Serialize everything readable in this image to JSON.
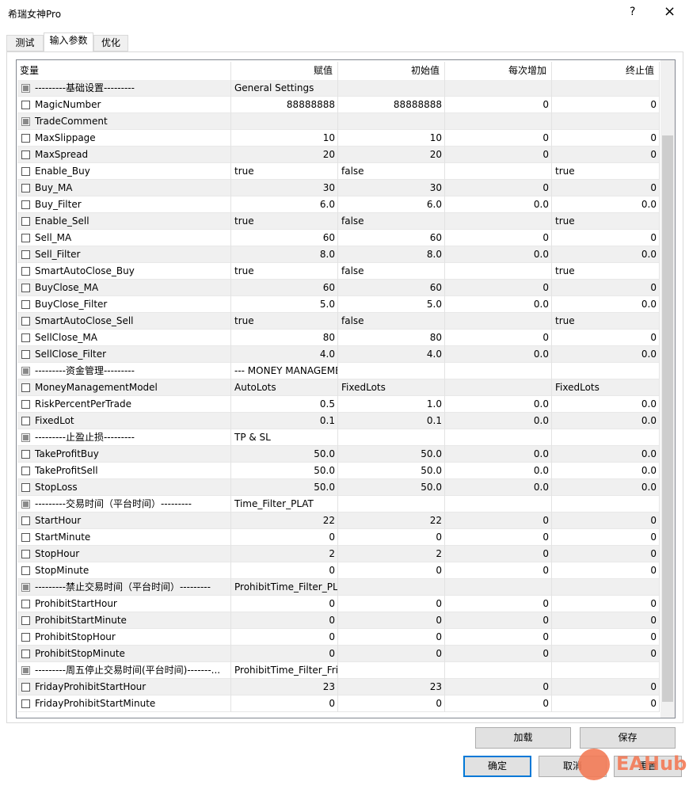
{
  "window": {
    "title": "希瑞女神Pro",
    "help": "?",
    "close": "×"
  },
  "tabs": [
    "测试",
    "输入参数",
    "优化"
  ],
  "table": {
    "header": [
      "变量",
      "赋值",
      "初始值",
      "每次增加",
      "终止值"
    ],
    "rows": [
      [
        "---------基础设置---------",
        "General Settings",
        null,
        null,
        null
      ],
      [
        "MagicNumber",
        "88888888",
        "88888888",
        "0",
        "0"
      ],
      [
        "TradeComment",
        null,
        null,
        null,
        null
      ],
      [
        "MaxSlippage",
        "10",
        "10",
        "0",
        "0"
      ],
      [
        "MaxSpread",
        "20",
        "20",
        "0",
        "0"
      ],
      [
        "Enable_Buy",
        "true",
        "false",
        null,
        "true"
      ],
      [
        "Buy_MA",
        "30",
        "30",
        "0",
        "0"
      ],
      [
        "Buy_Filter",
        "6.0",
        "6.0",
        "0.0",
        "0.0"
      ],
      [
        "Enable_Sell",
        "true",
        "false",
        null,
        "true"
      ],
      [
        "Sell_MA",
        "60",
        "60",
        "0",
        "0"
      ],
      [
        "Sell_Filter",
        "8.0",
        "8.0",
        "0.0",
        "0.0"
      ],
      [
        "SmartAutoClose_Buy",
        "true",
        "false",
        null,
        "true"
      ],
      [
        "BuyClose_MA",
        "60",
        "60",
        "0",
        "0"
      ],
      [
        "BuyClose_Filter",
        "5.0",
        "5.0",
        "0.0",
        "0.0"
      ],
      [
        "SmartAutoClose_Sell",
        "true",
        "false",
        null,
        "true"
      ],
      [
        "SellClose_MA",
        "80",
        "80",
        "0",
        "0"
      ],
      [
        "SellClose_Filter",
        "4.0",
        "4.0",
        "0.0",
        "0.0"
      ],
      [
        "---------资金管理---------",
        "--- MONEY MANAGEMENT ---",
        null,
        null,
        null
      ],
      [
        "MoneyManagementModel",
        "AutoLots",
        "FixedLots",
        null,
        "FixedLots"
      ],
      [
        "RiskPercentPerTrade",
        "0.5",
        "1.0",
        "0.0",
        "0.0"
      ],
      [
        "FixedLot",
        "0.1",
        "0.1",
        "0.0",
        "0.0"
      ],
      [
        "---------止盈止损---------",
        "TP & SL",
        null,
        null,
        null
      ],
      [
        "TakeProfitBuy",
        "50.0",
        "50.0",
        "0.0",
        "0.0"
      ],
      [
        "TakeProfitSell",
        "50.0",
        "50.0",
        "0.0",
        "0.0"
      ],
      [
        "StopLoss",
        "50.0",
        "50.0",
        "0.0",
        "0.0"
      ],
      [
        "---------交易时间（平台时间）---------",
        "Time_Filter_PLAT",
        null,
        null,
        null
      ],
      [
        "StartHour",
        "22",
        "22",
        "0",
        "0"
      ],
      [
        "StartMinute",
        "0",
        "0",
        "0",
        "0"
      ],
      [
        "StopHour",
        "2",
        "2",
        "0",
        "0"
      ],
      [
        "StopMinute",
        "0",
        "0",
        "0",
        "0"
      ],
      [
        "---------禁止交易时间（平台时间）---------",
        "ProhibitTime_Filter_PLAT",
        null,
        null,
        null
      ],
      [
        "ProhibitStartHour",
        "0",
        "0",
        "0",
        "0"
      ],
      [
        "ProhibitStartMinute",
        "0",
        "0",
        "0",
        "0"
      ],
      [
        "ProhibitStopHour",
        "0",
        "0",
        "0",
        "0"
      ],
      [
        "ProhibitStopMinute",
        "0",
        "0",
        "0",
        "0"
      ],
      [
        "---------周五停止交易时间(平台时间)-------...",
        "ProhibitTime_Filter_Friday",
        null,
        null,
        null
      ],
      [
        "FridayProhibitStartHour",
        "23",
        "23",
        "0",
        "0"
      ],
      [
        "FridayProhibitStartMinute",
        "0",
        "0",
        "0",
        "0"
      ]
    ]
  },
  "buttons": {
    "load": "加载",
    "save": "保存",
    "ok": "确定",
    "cancel": "取消",
    "reset": "重置"
  },
  "watermark": "EAHub"
}
